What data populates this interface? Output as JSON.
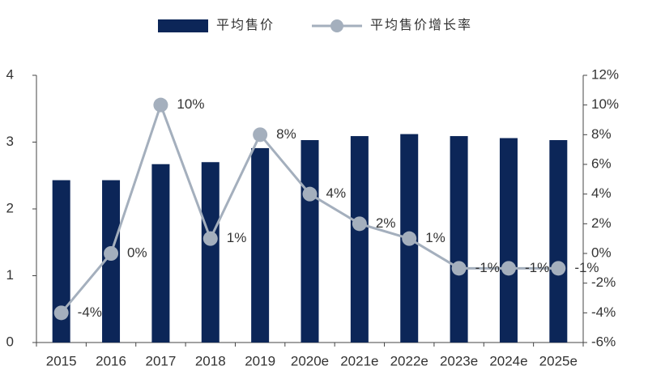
{
  "chart_data": {
    "type": "bar-line",
    "categories": [
      "2015",
      "2016",
      "2017",
      "2018",
      "2019",
      "2020e",
      "2021e",
      "2022e",
      "2023e",
      "2024e",
      "2025e"
    ],
    "series": [
      {
        "name": "平均售价",
        "type": "bar",
        "color": "#0c2658",
        "values": [
          2.43,
          2.43,
          2.67,
          2.7,
          2.91,
          3.03,
          3.09,
          3.12,
          3.09,
          3.06,
          3.03
        ]
      },
      {
        "name": "平均售价增长率",
        "type": "line",
        "axis": "y2",
        "color": "#a4afbd",
        "values": [
          -4,
          0,
          10,
          1,
          8,
          4,
          2,
          1,
          -1,
          -1,
          -1
        ],
        "value_labels": [
          "-4%",
          "0%",
          "10%",
          "1%",
          "8%",
          "4%",
          "2%",
          "1%",
          "-1%",
          "-1%",
          "-1%"
        ]
      }
    ],
    "ylim": [
      0,
      4
    ],
    "yticks": [
      0,
      1,
      2,
      3,
      4
    ],
    "y2lim": [
      -6,
      12
    ],
    "y2ticks": [
      {
        "value": -6,
        "label": "-6%"
      },
      {
        "value": -4,
        "label": "-4%"
      },
      {
        "value": -2,
        "label": "-2%"
      },
      {
        "value": 0,
        "label": "0%"
      },
      {
        "value": 2,
        "label": "2%"
      },
      {
        "value": 4,
        "label": "4%"
      },
      {
        "value": 6,
        "label": "6%"
      },
      {
        "value": 8,
        "label": "8%"
      },
      {
        "value": 10,
        "label": "10%"
      },
      {
        "value": 12,
        "label": "12%"
      }
    ],
    "legend": "top"
  }
}
